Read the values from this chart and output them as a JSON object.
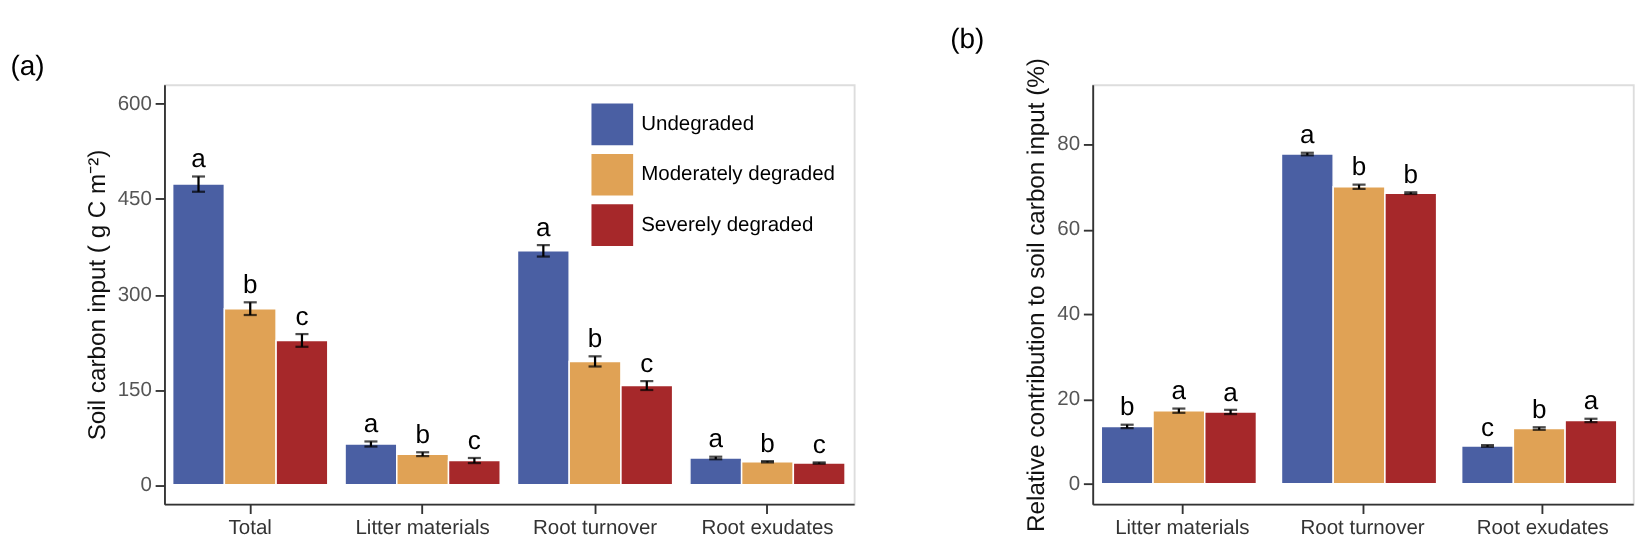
{
  "chart_data": [
    {
      "type": "bar",
      "title": "(a)",
      "ylabel": "Soil carbon input ( g C m⁻²)",
      "categories": [
        "Total",
        "Litter materials",
        "Root turnover",
        "Root exudates"
      ],
      "ylim": [
        -30,
        630
      ],
      "yticks": [
        0,
        150,
        300,
        450,
        600
      ],
      "grid": false,
      "legend": "top right",
      "series": [
        {
          "name": "Undegraded",
          "color": "#4a5fa3",
          "values": [
            473,
            64,
            368,
            42
          ],
          "errors": [
            12,
            4,
            9,
            2
          ],
          "value_labels": [
            "a",
            "a",
            "a",
            "a"
          ]
        },
        {
          "name": "Moderately degraded",
          "color": "#e0a255",
          "values": [
            277,
            48,
            194,
            36
          ],
          "errors": [
            10,
            3,
            8,
            1
          ],
          "value_labels": [
            "b",
            "b",
            "b",
            "b"
          ]
        },
        {
          "name": "Severely degraded",
          "color": "#a6282a",
          "values": [
            227,
            38,
            156,
            34
          ],
          "errors": [
            10,
            4,
            7,
            1
          ],
          "value_labels": [
            "c",
            "c",
            "c",
            "c"
          ]
        }
      ]
    },
    {
      "type": "bar",
      "title": "(b)",
      "ylabel": "Relative contribution to soil carbon input (%)",
      "categories": [
        "Litter materials",
        "Root turnover",
        "Root exudates"
      ],
      "ylim": [
        -4.7,
        94
      ],
      "yticks": [
        0,
        20,
        40,
        60,
        80
      ],
      "grid": false,
      "legend": false,
      "series": [
        {
          "color": "#4a5fa3",
          "values": [
            13.5,
            77.6,
            8.9
          ],
          "errors": [
            0.4,
            0.3,
            0.2
          ],
          "value_labels": [
            "b",
            "a",
            "c"
          ]
        },
        {
          "color": "#e0a255",
          "values": [
            17.2,
            69.9,
            13.0
          ],
          "errors": [
            0.5,
            0.5,
            0.3
          ],
          "value_labels": [
            "a",
            "b",
            "b"
          ]
        },
        {
          "color": "#a6282a",
          "values": [
            16.9,
            68.4,
            14.9
          ],
          "errors": [
            0.5,
            0.2,
            0.4
          ],
          "value_labels": [
            "a",
            "b",
            "a"
          ]
        }
      ]
    }
  ]
}
